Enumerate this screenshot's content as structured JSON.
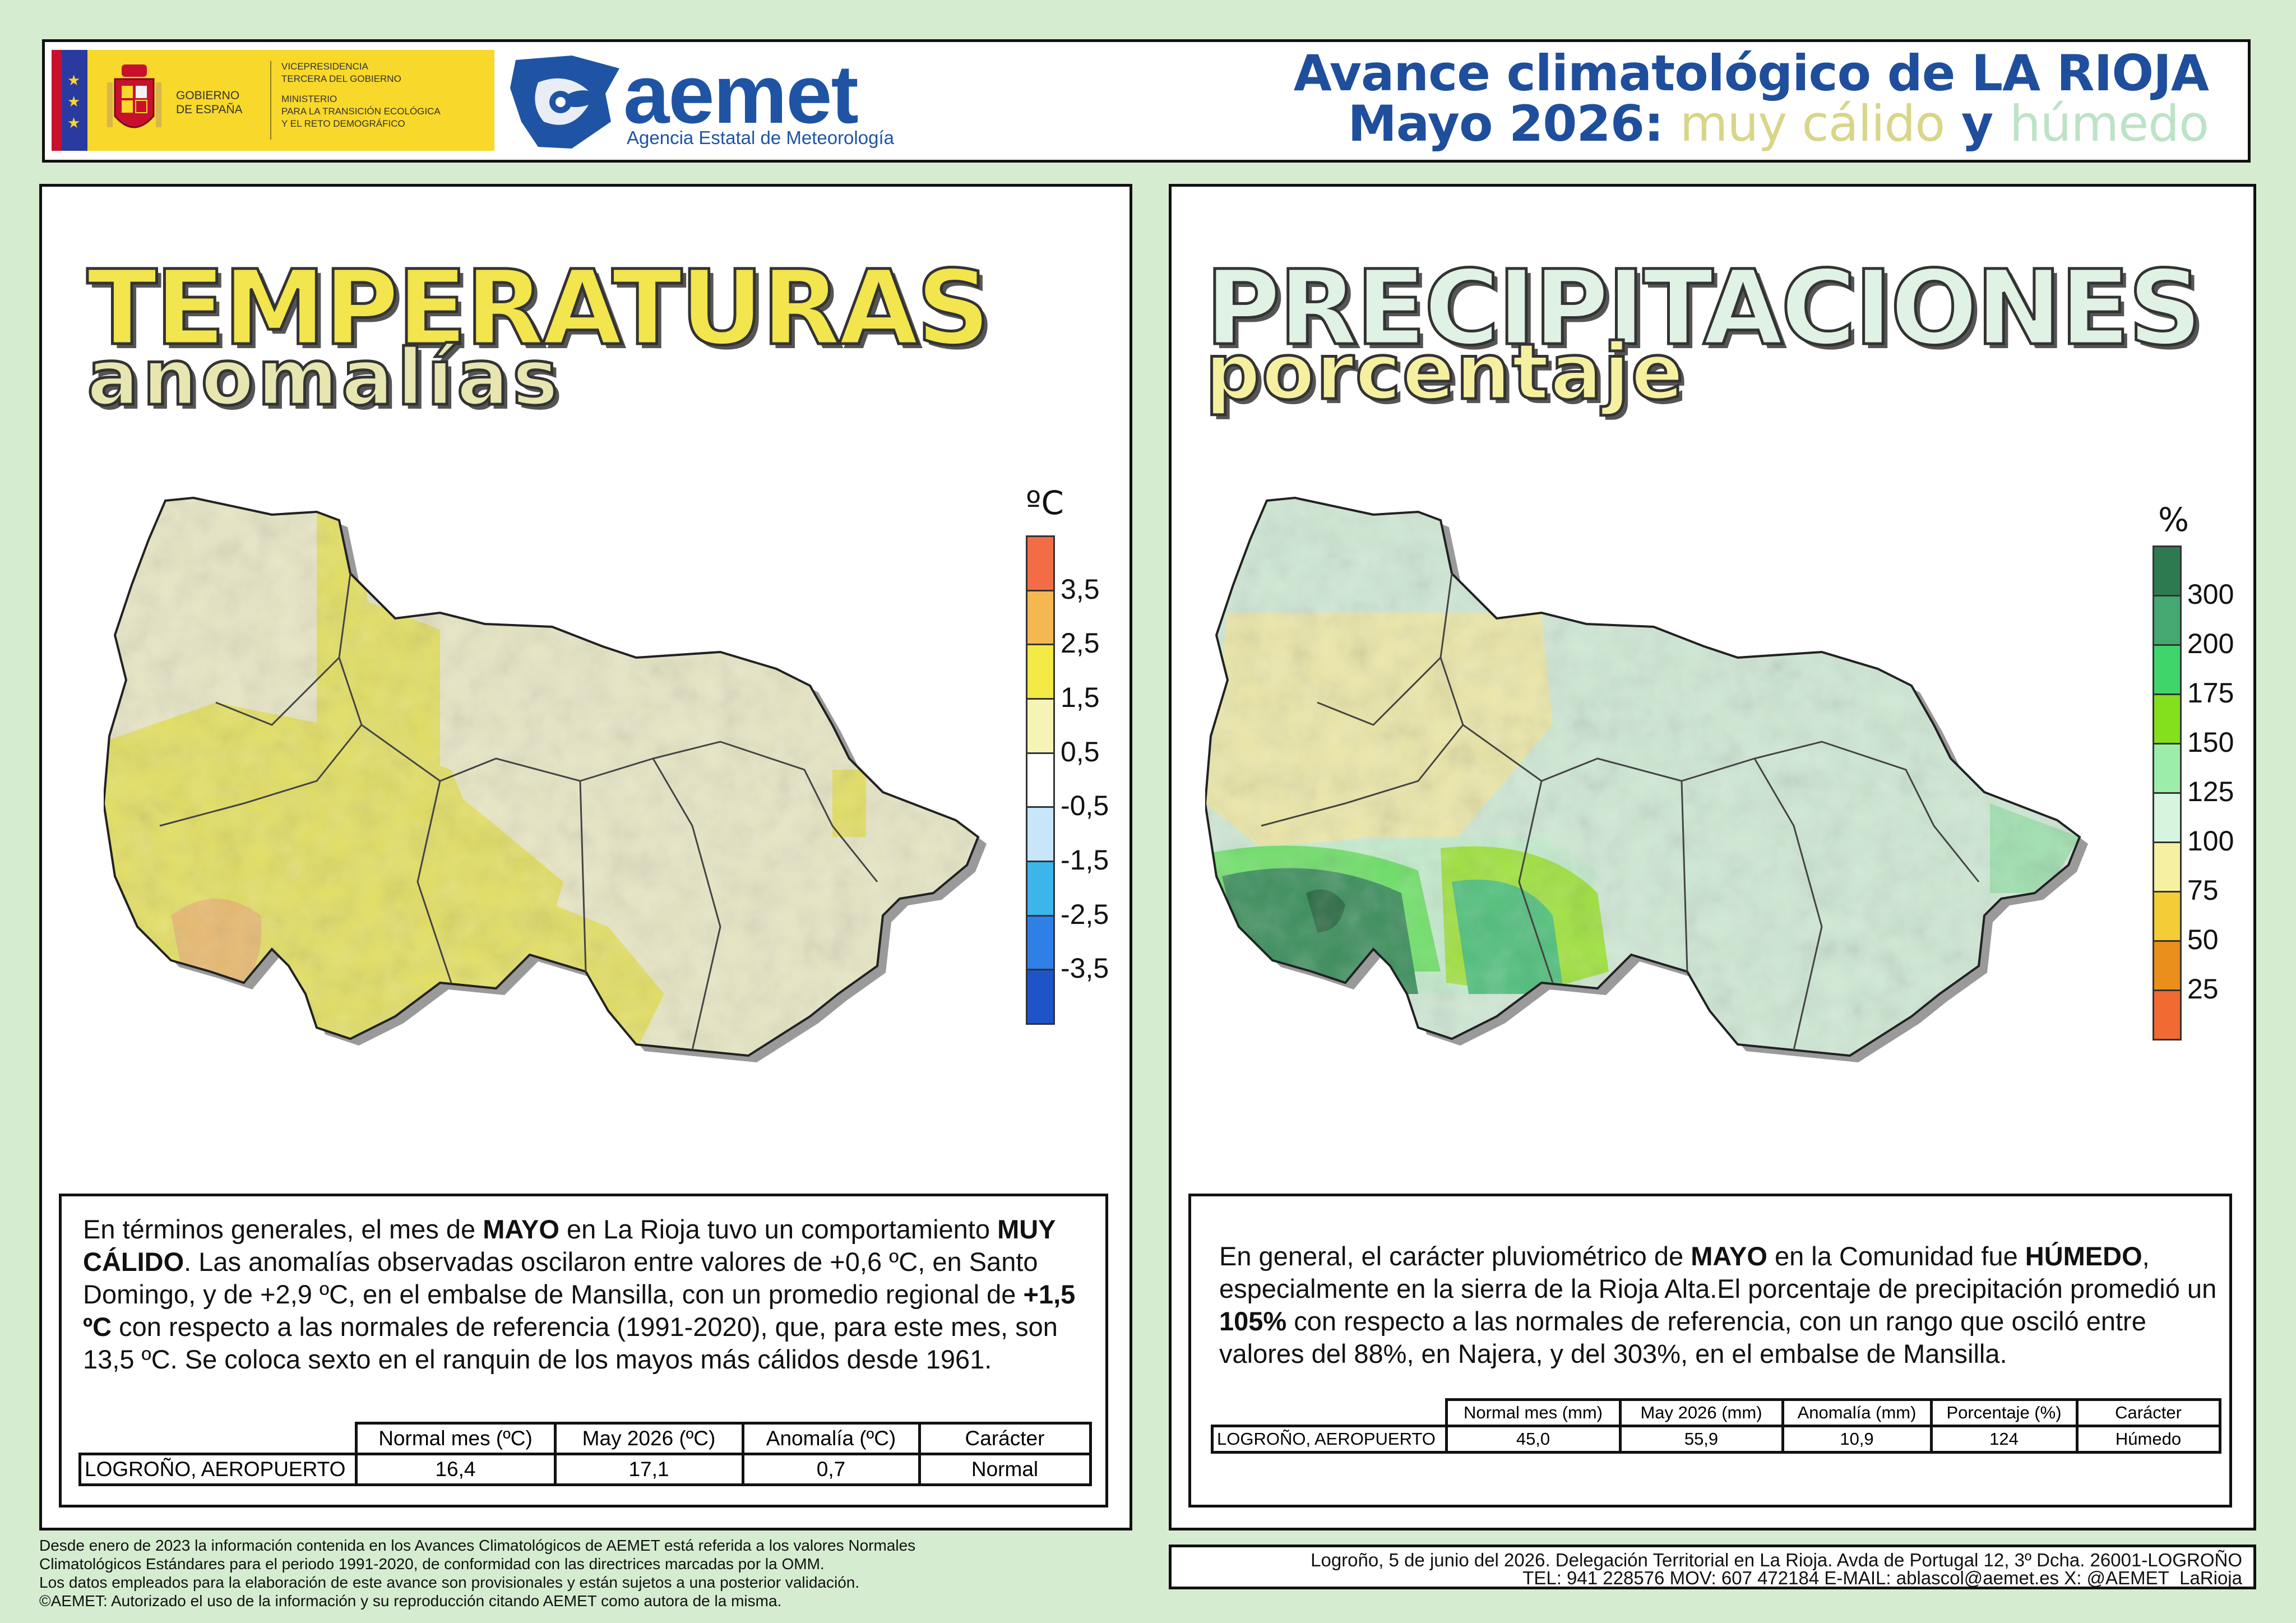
{
  "header": {
    "gov_logo": {
      "country": "GOBIERNO DE ESPAÑA",
      "country_line1": "GOBIERNO",
      "country_line2": "DE ESPAÑA",
      "ministry_lines": [
        "VICEPRESIDENCIA",
        "TERCERA DEL GOBIERNO",
        "MINISTERIO",
        "PARA LA TRANSICIÓN ECOLÓGICA",
        "Y EL RETO DEMOGRÁFICO"
      ]
    },
    "aemet_logo": {
      "word": "aemet",
      "subtitle": "Agencia Estatal de Meteorología",
      "color": "#1f54a4"
    },
    "title": {
      "line1_prefix": "Avance climatológico de ",
      "line1_region": "LA RIOJA",
      "line2_prefix": "Mayo 2026: ",
      "qual_temp": "muy cálido",
      "joiner": " y ",
      "qual_prec": "húmedo"
    }
  },
  "temperature_panel": {
    "title": "TEMPERATURAS",
    "subtitle": "anomalías",
    "legend": {
      "unit": "ºC",
      "colors": [
        "#f26d45",
        "#f4b752",
        "#f3ea45",
        "#f6f3b6",
        "#ffffff",
        "#c7e6f9",
        "#3cb5ea",
        "#2e7fe6",
        "#1f53c8"
      ],
      "ticks": [
        "3,5",
        "2,5",
        "1,5",
        "0,5",
        "-0,5",
        "-1,5",
        "-2,5",
        "-3,5"
      ]
    },
    "summary": {
      "p1": "En términos generales, el mes de ",
      "month": "MAYO",
      "p2": " en La Rioja tuvo un comportamiento ",
      "character": "MUY CÁLIDO",
      "p3": ". Las anomalías observadas oscilaron entre valores de +0,6 ºC, en Santo Domingo, y de +2,9 ºC, en el embalse de Mansilla, con un promedio regional de ",
      "mean": "+1,5 ºC",
      "p4": " con respecto a las normales de referencia (1991-2020), que, para este mes, son 13,5 ºC. Se coloca sexto en el ranquin de los mayos más cálidos desde 1961."
    },
    "table": {
      "headers": [
        "Normal mes (ºC)",
        "May 2026 (ºC)",
        "Anomalía (ºC)",
        "Carácter"
      ],
      "station": "LOGROÑO, AEROPUERTO",
      "values": [
        "16,4",
        "17,1",
        "0,7",
        "Normal"
      ]
    }
  },
  "precipitation_panel": {
    "title": "PRECIPITACIONES",
    "subtitle": "porcentaje",
    "legend": {
      "unit": "%",
      "colors": [
        "#2e7a50",
        "#44a870",
        "#3fd56b",
        "#84df1d",
        "#9cedaa",
        "#d5f5df",
        "#f5f1a0",
        "#f3cc38",
        "#ea8f1b",
        "#f06a31"
      ],
      "ticks": [
        "300",
        "200",
        "175",
        "150",
        "125",
        "100",
        "75",
        "50",
        "25"
      ]
    },
    "summary": {
      "p1": "En general, el carácter pluviométrico de ",
      "month": "MAYO",
      "p2": " en la Comunidad fue ",
      "character": "HÚMEDO",
      "p3": ", especialmente en la sierra de la Rioja Alta.El porcentaje de precipitación promedió un ",
      "mean": "105%",
      "p4": " con respecto a las normales de referencia, con un rango que osciló entre valores del 88%, en Najera, y del 303%, en el embalse de Mansilla."
    },
    "table": {
      "headers": [
        "Normal mes (mm)",
        "May 2026 (mm)",
        "Anomalía (mm)",
        "Porcentaje (%)",
        "Carácter"
      ],
      "station": "LOGROÑO, AEROPUERTO",
      "values": [
        "45,0",
        "55,9",
        "10,9",
        "124",
        "Húmedo"
      ]
    }
  },
  "footer": {
    "note_lines": [
      "Desde enero de 2023 la información contenida en los Avances Climatológicos de AEMET está referida a los valores Normales",
      "Climatológicos Estándares para el periodo 1991-2020, de conformidad con las directrices marcadas por la OMM.",
      "Los datos empleados para la elaboración de este avance son provisionales y están sujetos a una posterior validación.",
      "©AEMET: Autorizado el uso de la información y su reproducción citando AEMET como autora de la misma."
    ],
    "contact_line1": "Logroño, 5 de junio del 2026. Delegación Territorial en La Rioja. Avda de Portugal 12, 3º Dcha. 26001-LOGROÑO",
    "contact_line2": "TEL: 941 228576  MOV: 607 472184  E-MAIL: ablascol@aemet.es  X: @AEMET_LaRioja"
  }
}
